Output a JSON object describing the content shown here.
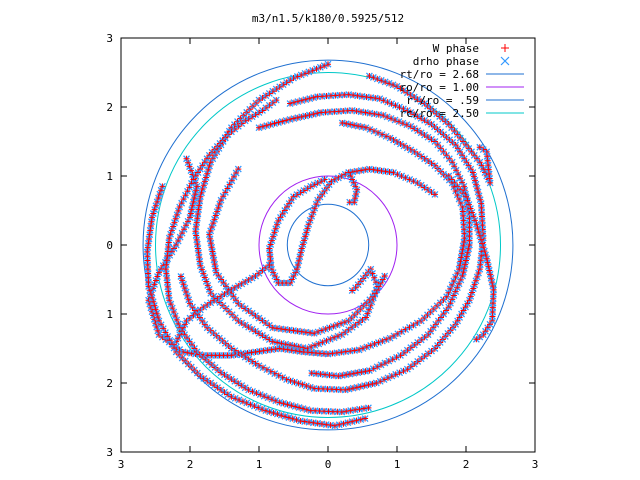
{
  "chart_data": {
    "type": "scatter",
    "title": "m3/n1.5/k180/0.5925/512",
    "xlim": [
      -3,
      3
    ],
    "ylim": [
      -3,
      3
    ],
    "xticks": [
      -3,
      -2,
      -1,
      0,
      1,
      2,
      3
    ],
    "yticks": [
      -3,
      -2,
      -1,
      0,
      1,
      2,
      3
    ],
    "xtick_labels": [
      "3",
      "2",
      "1",
      "0",
      "1",
      "2",
      "3"
    ],
    "ytick_labels": [
      "3",
      "2",
      "1",
      "0",
      "1",
      "2",
      "3"
    ],
    "grid": false,
    "legend_position": "top-right",
    "series": [
      {
        "name": "W phase",
        "marker": "plus",
        "color": "#ff0000"
      },
      {
        "name": "drho phase",
        "marker": "cross",
        "color": "#3399ff"
      }
    ],
    "circles": [
      {
        "name": "rt/ro = 2.68",
        "radius": 2.68,
        "color": "#1e6fd0"
      },
      {
        "name": "ro/ro = 1.00",
        "radius": 1.0,
        "color": "#a020f0"
      },
      {
        "name": "r-/ro = .59",
        "radius": 0.59,
        "color": "#1e6fd0"
      },
      {
        "name": "rc/ro = 2.50",
        "radius": 2.5,
        "color": "#00c8c8"
      }
    ],
    "arms": [
      {
        "points": [
          [
            -0.05,
            0.95
          ],
          [
            -0.25,
            0.85
          ],
          [
            -0.5,
            0.7
          ],
          [
            -0.72,
            0.35
          ],
          [
            -0.85,
            -0.05
          ],
          [
            -0.82,
            -0.35
          ],
          [
            -0.72,
            -0.55
          ],
          [
            -0.55,
            -0.55
          ],
          [
            -0.45,
            -0.35
          ]
        ]
      },
      {
        "points": [
          [
            -0.45,
            -0.35
          ],
          [
            -0.38,
            -0.05
          ],
          [
            -0.28,
            0.3
          ],
          [
            -0.15,
            0.65
          ],
          [
            0.05,
            0.92
          ],
          [
            0.3,
            1.05
          ],
          [
            0.6,
            1.1
          ],
          [
            0.95,
            1.05
          ],
          [
            1.3,
            0.9
          ],
          [
            1.6,
            0.7
          ]
        ]
      },
      {
        "points": [
          [
            0.3,
            1.05
          ],
          [
            0.42,
            0.8
          ],
          [
            0.38,
            0.62
          ],
          [
            0.25,
            0.62
          ]
        ]
      },
      {
        "points": [
          [
            0.0,
            2.62
          ],
          [
            -0.5,
            2.42
          ],
          [
            -1.0,
            2.1
          ],
          [
            -1.4,
            1.7
          ],
          [
            -1.7,
            1.2
          ],
          [
            -1.85,
            0.7
          ],
          [
            -1.92,
            0.2
          ],
          [
            -1.85,
            -0.3
          ],
          [
            -1.7,
            -0.7
          ],
          [
            -1.3,
            -1.1
          ],
          [
            -0.8,
            -1.4
          ],
          [
            -0.3,
            -1.5
          ],
          [
            0.2,
            -1.3
          ],
          [
            0.55,
            -1.05
          ],
          [
            0.72,
            -0.6
          ],
          [
            0.62,
            -0.35
          ],
          [
            0.4,
            -0.62
          ],
          [
            0.3,
            -0.7
          ]
        ]
      },
      {
        "points": [
          [
            -1.3,
            1.1
          ],
          [
            -1.55,
            0.65
          ],
          [
            -1.72,
            0.15
          ],
          [
            -1.62,
            -0.4
          ],
          [
            -1.3,
            -0.85
          ],
          [
            -0.8,
            -1.2
          ],
          [
            -0.2,
            -1.28
          ],
          [
            0.3,
            -1.1
          ],
          [
            0.65,
            -0.75
          ],
          [
            0.85,
            -0.4
          ]
        ]
      },
      {
        "points": [
          [
            -2.2,
            -1.4
          ],
          [
            -2.05,
            -1.1
          ],
          [
            -1.8,
            -0.9
          ],
          [
            -1.4,
            -0.65
          ],
          [
            -1.05,
            -0.45
          ],
          [
            -0.8,
            -0.25
          ]
        ]
      },
      {
        "points": [
          [
            -2.05,
            1.25
          ],
          [
            -1.9,
            0.85
          ],
          [
            -2.0,
            0.4
          ],
          [
            -2.2,
            0.0
          ],
          [
            -2.45,
            -0.4
          ],
          [
            -2.6,
            -0.8
          ],
          [
            -2.45,
            -1.3
          ],
          [
            -2.1,
            -1.55
          ],
          [
            -1.8,
            -1.6
          ],
          [
            -1.4,
            -1.6
          ],
          [
            -1.05,
            -1.55
          ],
          [
            -0.7,
            -1.5
          ],
          [
            -0.35,
            -1.55
          ],
          [
            0.0,
            -1.58
          ],
          [
            0.45,
            -1.52
          ],
          [
            0.9,
            -1.35
          ],
          [
            1.35,
            -1.1
          ],
          [
            1.72,
            -0.75
          ],
          [
            1.9,
            -0.35
          ],
          [
            1.98,
            0.1
          ],
          [
            1.95,
            0.55
          ],
          [
            1.8,
            0.9
          ],
          [
            1.55,
            1.15
          ],
          [
            1.25,
            1.35
          ],
          [
            0.9,
            1.55
          ],
          [
            0.55,
            1.7
          ],
          [
            0.15,
            1.78
          ]
        ]
      },
      {
        "points": [
          [
            -0.55,
            2.05
          ],
          [
            -0.15,
            2.15
          ],
          [
            0.3,
            2.18
          ],
          [
            0.75,
            2.12
          ],
          [
            1.15,
            1.95
          ],
          [
            1.5,
            1.75
          ],
          [
            1.85,
            1.45
          ],
          [
            2.1,
            1.05
          ],
          [
            2.22,
            0.6
          ],
          [
            2.25,
            0.1
          ],
          [
            2.2,
            -0.35
          ],
          [
            2.05,
            -0.8
          ],
          [
            1.85,
            -1.15
          ],
          [
            1.55,
            -1.5
          ],
          [
            1.15,
            -1.8
          ],
          [
            0.7,
            -2.0
          ],
          [
            0.25,
            -2.1
          ],
          [
            -0.2,
            -2.08
          ],
          [
            -0.6,
            -1.95
          ],
          [
            -1.0,
            -1.75
          ],
          [
            -1.4,
            -1.5
          ],
          [
            -1.75,
            -1.2
          ],
          [
            -2.0,
            -0.85
          ],
          [
            -2.15,
            -0.4
          ]
        ]
      },
      {
        "points": [
          [
            -2.4,
            0.85
          ],
          [
            -2.55,
            0.4
          ],
          [
            -2.62,
            -0.1
          ],
          [
            -2.6,
            -0.6
          ],
          [
            -2.45,
            -1.1
          ],
          [
            -2.2,
            -1.55
          ],
          [
            -1.85,
            -1.9
          ],
          [
            -1.4,
            -2.2
          ],
          [
            -0.9,
            -2.4
          ],
          [
            -0.4,
            -2.55
          ],
          [
            0.1,
            -2.62
          ],
          [
            0.6,
            -2.5
          ]
        ]
      },
      {
        "points": [
          [
            -1.0,
            1.7
          ],
          [
            -0.55,
            1.82
          ],
          [
            -0.1,
            1.92
          ],
          [
            0.35,
            1.95
          ],
          [
            0.8,
            1.88
          ],
          [
            1.2,
            1.72
          ],
          [
            1.55,
            1.5
          ],
          [
            1.8,
            1.2
          ],
          [
            1.97,
            0.85
          ],
          [
            2.05,
            0.45
          ],
          [
            2.05,
            0.0
          ],
          [
            1.95,
            -0.45
          ],
          [
            1.75,
            -0.9
          ],
          [
            1.45,
            -1.3
          ],
          [
            1.05,
            -1.6
          ],
          [
            0.6,
            -1.82
          ],
          [
            0.15,
            -1.9
          ],
          [
            -0.3,
            -1.85
          ]
        ]
      },
      {
        "points": [
          [
            -0.75,
            2.1
          ],
          [
            -0.95,
            1.95
          ],
          [
            -1.2,
            1.8
          ],
          [
            -1.45,
            1.6
          ],
          [
            -1.72,
            1.3
          ],
          [
            -1.95,
            0.95
          ],
          [
            -2.15,
            0.55
          ],
          [
            -2.3,
            0.1
          ],
          [
            -2.35,
            -0.35
          ],
          [
            -2.3,
            -0.8
          ],
          [
            -2.15,
            -1.2
          ],
          [
            -1.9,
            -1.55
          ],
          [
            -1.55,
            -1.85
          ],
          [
            -1.15,
            -2.1
          ],
          [
            -0.7,
            -2.28
          ],
          [
            -0.25,
            -2.4
          ],
          [
            0.2,
            -2.42
          ],
          [
            0.65,
            -2.35
          ]
        ]
      },
      {
        "points": [
          [
            1.75,
            1.0
          ],
          [
            2.0,
            0.7
          ],
          [
            2.15,
            0.3
          ],
          [
            2.3,
            -0.2
          ],
          [
            2.4,
            -0.65
          ],
          [
            2.38,
            -1.1
          ],
          [
            2.25,
            -1.3
          ],
          [
            2.1,
            -1.4
          ]
        ]
      },
      {
        "points": [
          [
            0.6,
            2.45
          ],
          [
            1.0,
            2.3
          ],
          [
            1.4,
            2.05
          ],
          [
            1.75,
            1.75
          ],
          [
            2.0,
            1.45
          ],
          [
            2.2,
            1.2
          ],
          [
            2.35,
            0.9
          ],
          [
            2.3,
            1.35
          ],
          [
            2.15,
            1.45
          ]
        ]
      }
    ]
  }
}
